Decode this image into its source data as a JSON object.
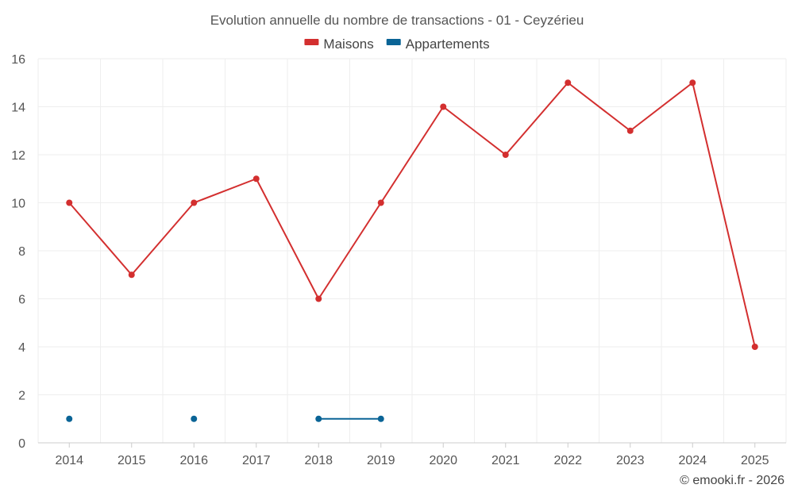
{
  "chart_data": {
    "type": "line",
    "title": "Evolution annuelle du nombre de transactions - 01 - Ceyzérieu",
    "x": [
      "2014",
      "2015",
      "2016",
      "2017",
      "2018",
      "2019",
      "2020",
      "2021",
      "2022",
      "2023",
      "2024",
      "2025"
    ],
    "series": [
      {
        "name": "Maisons",
        "color": "#d32f2f",
        "values": [
          10,
          7,
          10,
          11,
          6,
          10,
          14,
          12,
          15,
          13,
          15,
          4
        ]
      },
      {
        "name": "Appartements",
        "color": "#0a6496",
        "values": [
          1,
          null,
          1,
          null,
          1,
          1,
          null,
          null,
          null,
          null,
          null,
          null
        ]
      }
    ],
    "ylim": [
      0,
      16
    ],
    "yticks": [
      0,
      2,
      4,
      6,
      8,
      10,
      12,
      14,
      16
    ],
    "xlabel": "",
    "ylabel": "",
    "grid": true,
    "legend_position": "top-center"
  },
  "credit": "© emooki.fr - 2026"
}
